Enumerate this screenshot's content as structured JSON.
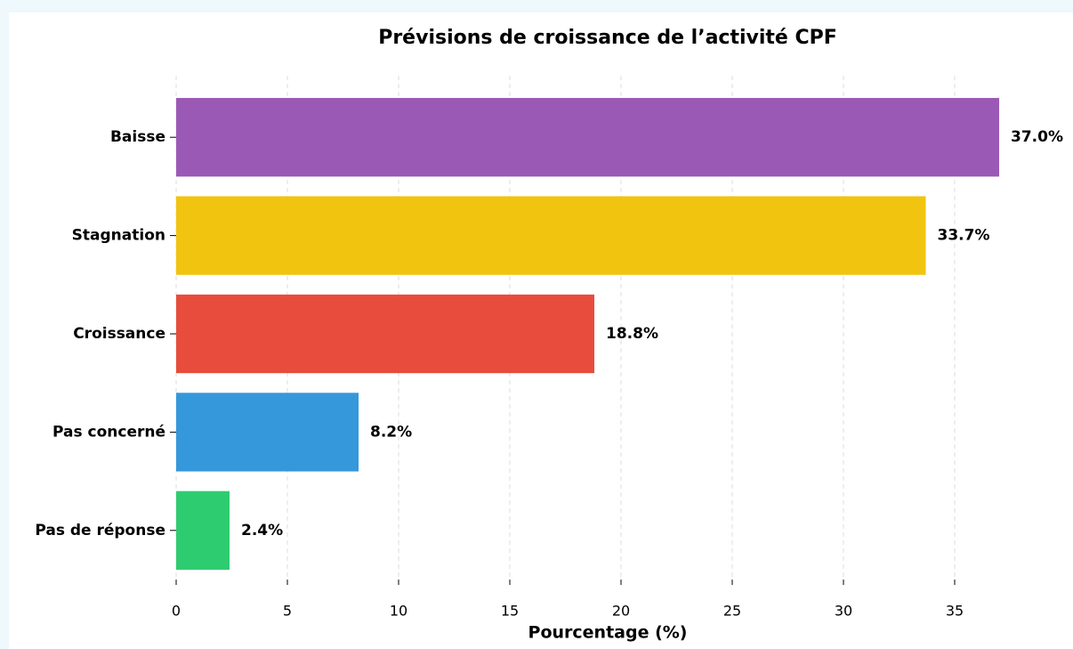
{
  "chart_data": {
    "type": "barh",
    "title": "Prévisions de croissance de l’activité CPF",
    "xlabel": "Pourcentage (%)",
    "categories": [
      "Baisse",
      "Stagnation",
      "Croissance",
      "Pas concerné",
      "Pas de réponse"
    ],
    "values": [
      37.0,
      33.7,
      18.8,
      8.2,
      2.4
    ],
    "value_labels": [
      "37.0%",
      "33.7%",
      "18.8%",
      "8.2%",
      "2.4%"
    ],
    "colors": [
      "#9b59b6",
      "#f1c40f",
      "#e74c3c",
      "#3498db",
      "#2ecc71"
    ],
    "xlim": [
      0,
      40.3
    ],
    "xticks": [
      0,
      5,
      10,
      15,
      20,
      25,
      30,
      35
    ],
    "grid": true
  }
}
